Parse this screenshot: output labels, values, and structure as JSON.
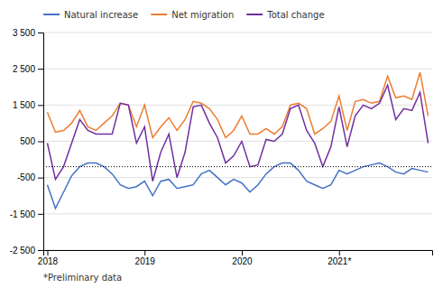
{
  "chart_data": {
    "type": "line",
    "categories": [
      "2018",
      null,
      null,
      null,
      null,
      null,
      null,
      null,
      null,
      null,
      null,
      null,
      "2019",
      null,
      null,
      null,
      null,
      null,
      null,
      null,
      null,
      null,
      null,
      null,
      "2020",
      null,
      null,
      null,
      null,
      null,
      null,
      null,
      null,
      null,
      null,
      null,
      "2021*",
      null,
      null,
      null,
      null,
      null,
      null,
      null,
      null,
      null,
      null,
      null
    ],
    "series": [
      {
        "name": "Natural increase",
        "color": "#4472C4",
        "values": [
          -700,
          -1350,
          -900,
          -450,
          -200,
          -100,
          -100,
          -200,
          -400,
          -700,
          -800,
          -750,
          -600,
          -1000,
          -600,
          -550,
          -800,
          -750,
          -700,
          -400,
          -300,
          -500,
          -700,
          -550,
          -650,
          -900,
          -700,
          -400,
          -200,
          -100,
          -100,
          -300,
          -600,
          -700,
          -800,
          -700,
          -300,
          -400,
          -300,
          -200,
          -150,
          -100,
          -200,
          -350,
          -400,
          -250,
          -300,
          -350
        ]
      },
      {
        "name": "Net migration",
        "color": "#ED7D31",
        "values": [
          1300,
          750,
          800,
          1000,
          1350,
          900,
          800,
          1000,
          1200,
          1550,
          1500,
          900,
          1500,
          600,
          900,
          1150,
          800,
          1100,
          1600,
          1550,
          1400,
          1100,
          600,
          800,
          1200,
          700,
          700,
          850,
          700,
          900,
          1500,
          1550,
          1400,
          700,
          850,
          1050,
          1750,
          800,
          1600,
          1650,
          1550,
          1600,
          2300,
          1700,
          1750,
          1650,
          2400,
          1200
        ]
      },
      {
        "name": "Total change",
        "color": "#7030A0",
        "values": [
          450,
          -550,
          -200,
          450,
          1100,
          800,
          700,
          700,
          700,
          1550,
          1500,
          450,
          900,
          -600,
          200,
          700,
          -500,
          200,
          1450,
          1500,
          1000,
          600,
          -100,
          100,
          500,
          -200,
          -150,
          550,
          500,
          700,
          1400,
          1500,
          800,
          450,
          -200,
          350,
          1450,
          350,
          1200,
          1500,
          1400,
          1550,
          2050,
          1100,
          1400,
          1350,
          1850,
          450
        ]
      }
    ],
    "annotations": [
      {
        "type": "hline",
        "y": -200,
        "line_style": "dotted"
      }
    ],
    "footnote": "*Preliminary data",
    "ylim": [
      -2500,
      3500
    ],
    "yticks": [
      {
        "value": -2500,
        "label": "-2 500"
      },
      {
        "value": -1500,
        "label": "-1 500"
      },
      -500,
      500,
      {
        "value": 1500,
        "label": "1 500"
      },
      {
        "value": 2500,
        "label": "2 500"
      },
      {
        "value": 3500,
        "label": "3 500"
      }
    ],
    "grid": true,
    "legend": "top"
  }
}
